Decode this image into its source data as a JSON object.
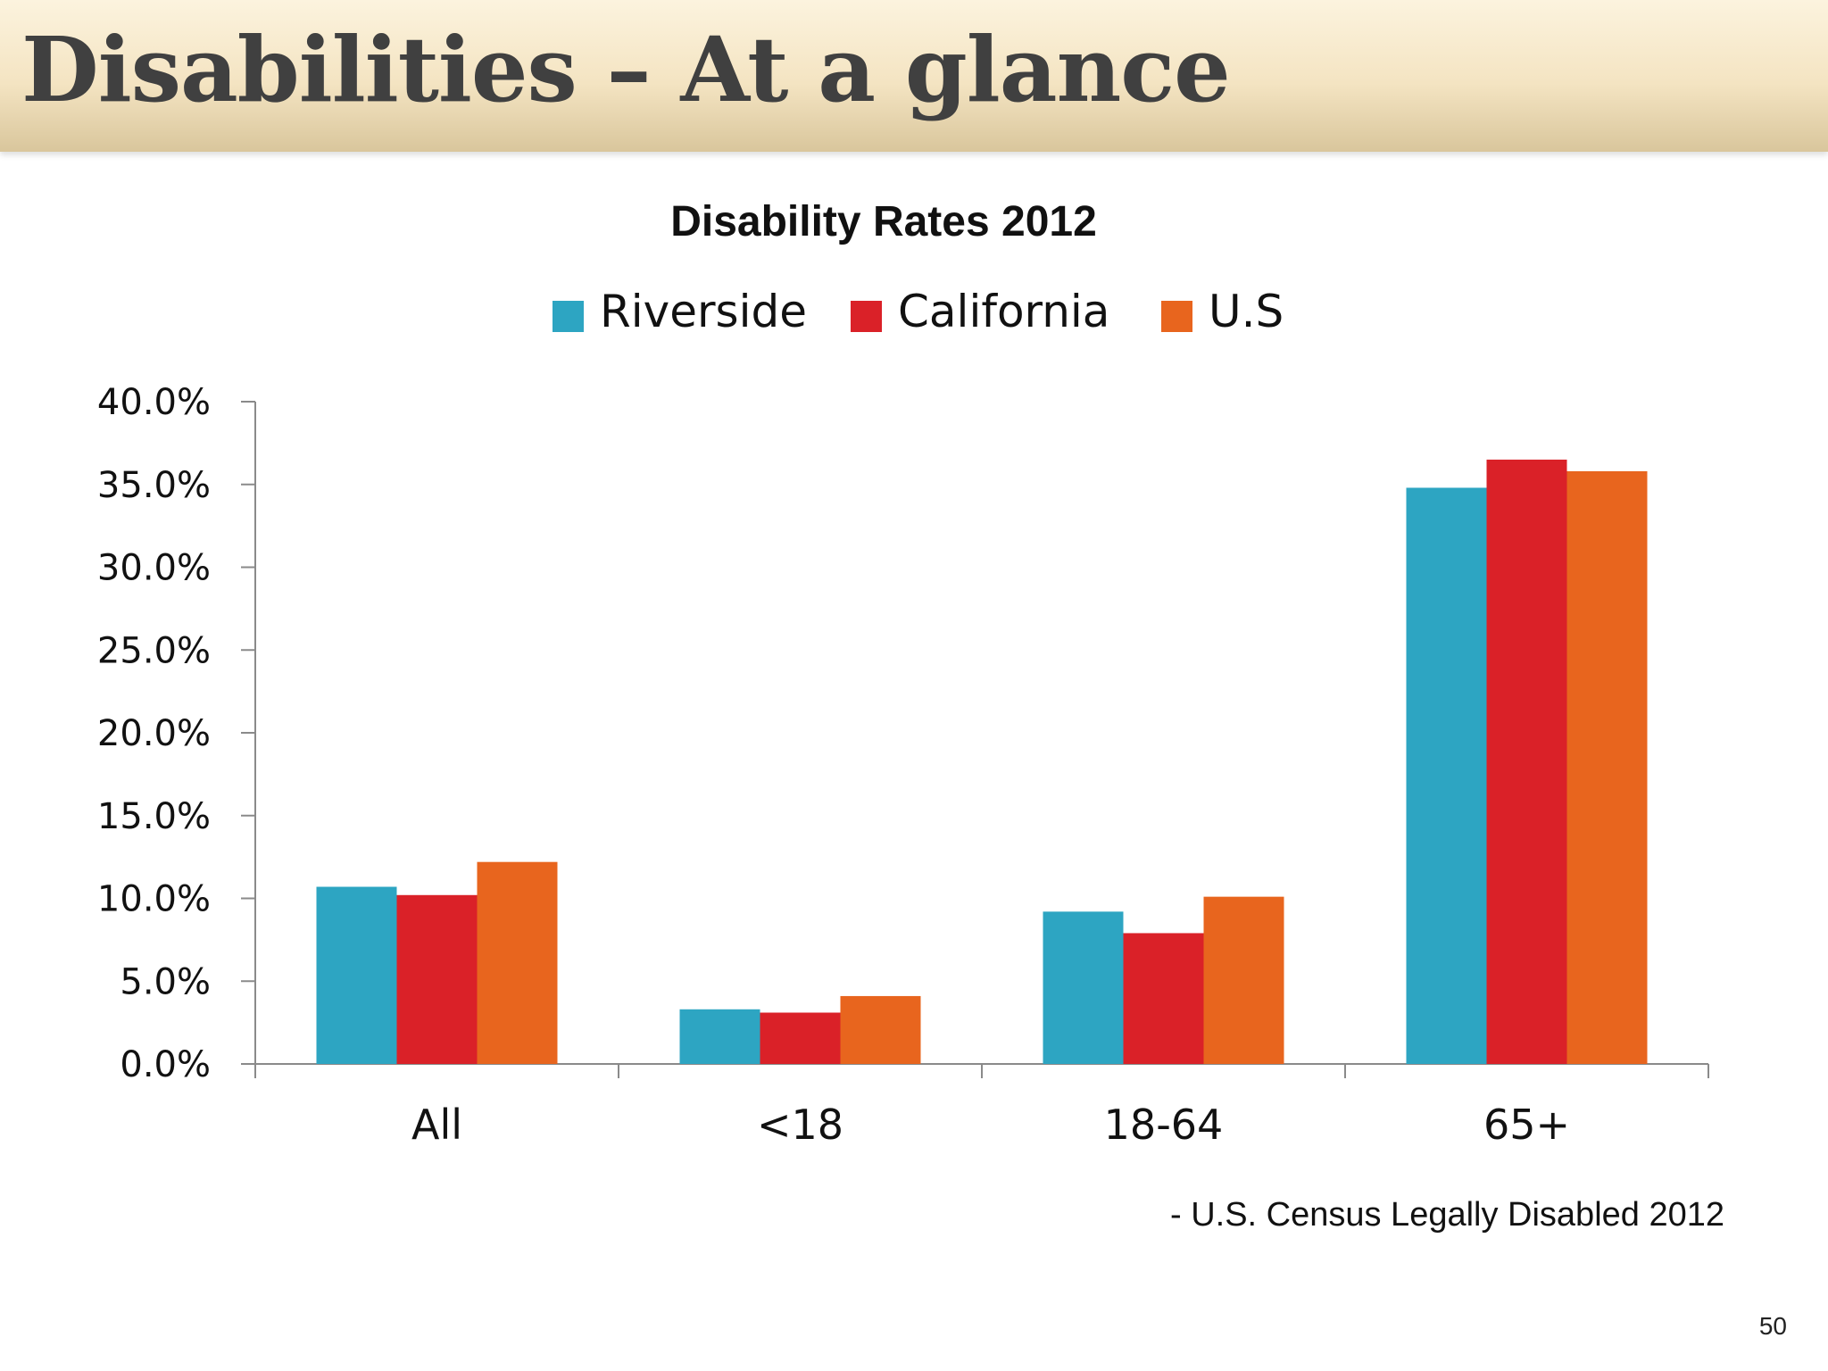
{
  "slide": {
    "title": "Disabilities – At a glance",
    "source": "- U.S. Census Legally Disabled 2012",
    "page_number": "50"
  },
  "chart_data": {
    "type": "bar",
    "title": "Disability Rates 2012",
    "xlabel": "",
    "ylabel": "",
    "categories": [
      "All",
      "<18",
      "18-64",
      "65+"
    ],
    "series": [
      {
        "name": "Riverside",
        "color": "#2da5c2",
        "values": [
          10.7,
          3.3,
          9.2,
          34.8
        ]
      },
      {
        "name": "California",
        "color": "#da2128",
        "values": [
          10.2,
          3.1,
          7.9,
          36.5
        ]
      },
      {
        "name": "U.S",
        "color": "#e8651e",
        "values": [
          12.2,
          4.1,
          10.1,
          35.8
        ]
      }
    ],
    "ylim": [
      0,
      40
    ],
    "y_ticks": [
      0,
      5,
      10,
      15,
      20,
      25,
      30,
      35,
      40
    ],
    "y_tick_labels": [
      "0.0%",
      "5.0%",
      "10.0%",
      "15.0%",
      "20.0%",
      "25.0%",
      "30.0%",
      "35.0%",
      "40.0%"
    ],
    "grid": false,
    "legend_position": "top"
  }
}
